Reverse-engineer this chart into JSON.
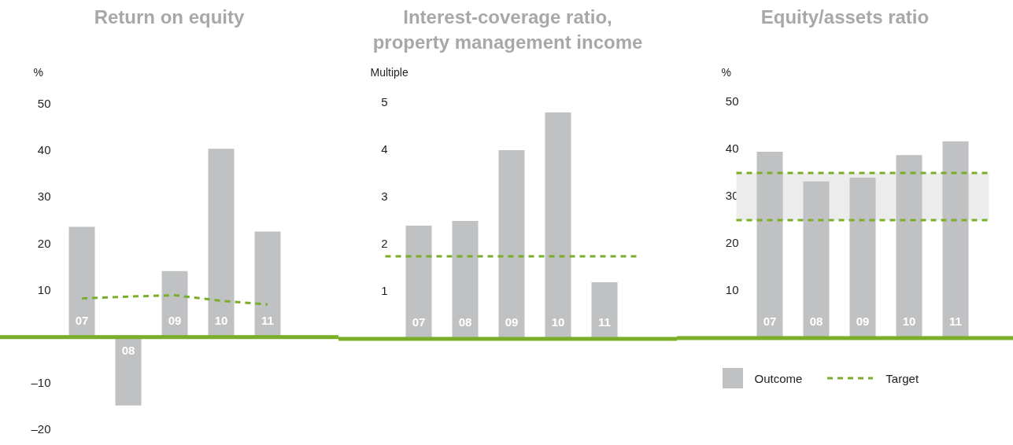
{
  "chart_data": [
    {
      "type": "bar",
      "title": "Return on equity",
      "ylabel": "%",
      "categories": [
        "07",
        "08",
        "09",
        "10",
        "11"
      ],
      "series": [
        {
          "color": "#c0c1c3",
          "values": [
            23.7,
            -14.7,
            14.2,
            40.5,
            22.7
          ]
        },
        {
          "type": "line",
          "color": "#7aad28",
          "line_style": "dashed",
          "values": [
            8.3,
            8.7,
            9.0,
            7.8,
            7.0
          ]
        }
      ],
      "ylim": [
        -20,
        50
      ],
      "yticks": [
        {
          "value": -20,
          "label": "–20"
        },
        {
          "value": -10,
          "label": "–10"
        },
        10,
        20,
        30,
        40,
        50
      ],
      "legend": false
    },
    {
      "type": "bar",
      "title": "Interest-coverage ratio, property management income",
      "ylabel": "Multiple",
      "categories": [
        "07",
        "08",
        "09",
        "10",
        "11"
      ],
      "series": [
        {
          "color": "#c0c1c3",
          "values": [
            2.4,
            2.5,
            4.0,
            4.8,
            1.2
          ]
        }
      ],
      "ylim": [
        0,
        5
      ],
      "yticks": [
        1,
        2,
        3,
        4,
        5
      ],
      "legend": false,
      "ref_lines": [
        {
          "axis": "y",
          "value": 1.75,
          "color": "#7aad28",
          "line_style": "dashed"
        }
      ]
    },
    {
      "type": "bar",
      "title": "Equity/assets ratio",
      "ylabel": "%",
      "categories": [
        "07",
        "08",
        "09",
        "10",
        "11"
      ],
      "series": [
        {
          "name": "Outcome",
          "color": "#c0c1c3",
          "values": [
            39.5,
            33.2,
            34.0,
            38.8,
            41.7
          ]
        }
      ],
      "ylim": [
        0,
        50
      ],
      "yticks": [
        10,
        20,
        30,
        40,
        50
      ],
      "legend": "bottom left",
      "bands": [
        {
          "axis": "y",
          "from": 25,
          "to": 35,
          "color": "#ebeceb"
        }
      ],
      "ref_lines": [
        {
          "axis": "y",
          "value": 35,
          "color": "#7aad28",
          "line_style": "dashed",
          "label": "Target"
        },
        {
          "axis": "y",
          "value": 25,
          "color": "#7aad28",
          "line_style": "dashed"
        }
      ]
    }
  ]
}
